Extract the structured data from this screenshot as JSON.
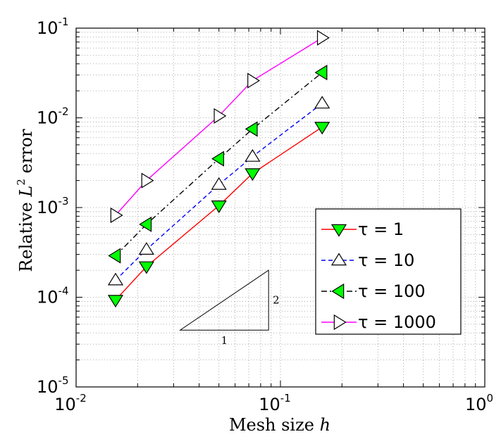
{
  "chart_data": {
    "type": "line",
    "xscale": "log",
    "yscale": "log",
    "xlim": [
      0.01,
      1
    ],
    "ylim": [
      1e-05,
      0.1
    ],
    "grid": true,
    "xlabel": "Mesh size h",
    "ylabel": "Relative L2 error",
    "xlabel_parts": {
      "text": "Mesh size ",
      "var": "h"
    },
    "ylabel_parts": {
      "text": "Relative ",
      "var": "L",
      "sup": "2",
      "tail": " error"
    },
    "x_ticks": [
      {
        "value": 0.01,
        "base": "10",
        "exp": "-2"
      },
      {
        "value": 0.1,
        "base": "10",
        "exp": "-1"
      },
      {
        "value": 1,
        "base": "10",
        "exp": "0"
      }
    ],
    "y_ticks": [
      {
        "value": 1e-05,
        "base": "10",
        "exp": "-5"
      },
      {
        "value": 0.0001,
        "base": "10",
        "exp": "-4"
      },
      {
        "value": 0.001,
        "base": "10",
        "exp": "-3"
      },
      {
        "value": 0.01,
        "base": "10",
        "exp": "-2"
      },
      {
        "value": 0.1,
        "base": "10",
        "exp": "-1"
      }
    ],
    "legend_position": "right",
    "series": [
      {
        "name": "τ = 1",
        "color": "#ff0000",
        "line_style": "solid",
        "marker": "triangle-down",
        "marker_fill": "#00ff00",
        "x": [
          0.0156,
          0.0221,
          0.05,
          0.073,
          0.16
        ],
        "y": [
          9.3e-05,
          0.00022,
          0.00105,
          0.0024,
          0.0079
        ]
      },
      {
        "name": "τ = 10",
        "color": "#0000ff",
        "line_style": "dashed",
        "marker": "triangle-up",
        "marker_fill": "#ffffff",
        "x": [
          0.0156,
          0.0221,
          0.05,
          0.073,
          0.16
        ],
        "y": [
          0.000155,
          0.00034,
          0.0018,
          0.0037,
          0.0145
        ]
      },
      {
        "name": "τ = 100",
        "color": "#000000",
        "line_style": "dashdot",
        "marker": "triangle-left",
        "marker_fill": "#00ff00",
        "x": [
          0.0156,
          0.0221,
          0.05,
          0.073,
          0.16
        ],
        "y": [
          0.00029,
          0.00065,
          0.0035,
          0.0075,
          0.032
        ]
      },
      {
        "name": "τ = 1000",
        "color": "#ff00ff",
        "line_style": "solid",
        "marker": "triangle-right",
        "marker_fill": "#ffffff",
        "x": [
          0.0156,
          0.0221,
          0.05,
          0.073,
          0.16
        ],
        "y": [
          0.00082,
          0.002,
          0.0105,
          0.026,
          0.078
        ]
      }
    ],
    "slope_triangle": {
      "x0": 0.0323,
      "x1": 0.0875,
      "y0": 4.3e-05,
      "y1": 0.0002,
      "run_label": "1",
      "rise_label": "2"
    }
  }
}
